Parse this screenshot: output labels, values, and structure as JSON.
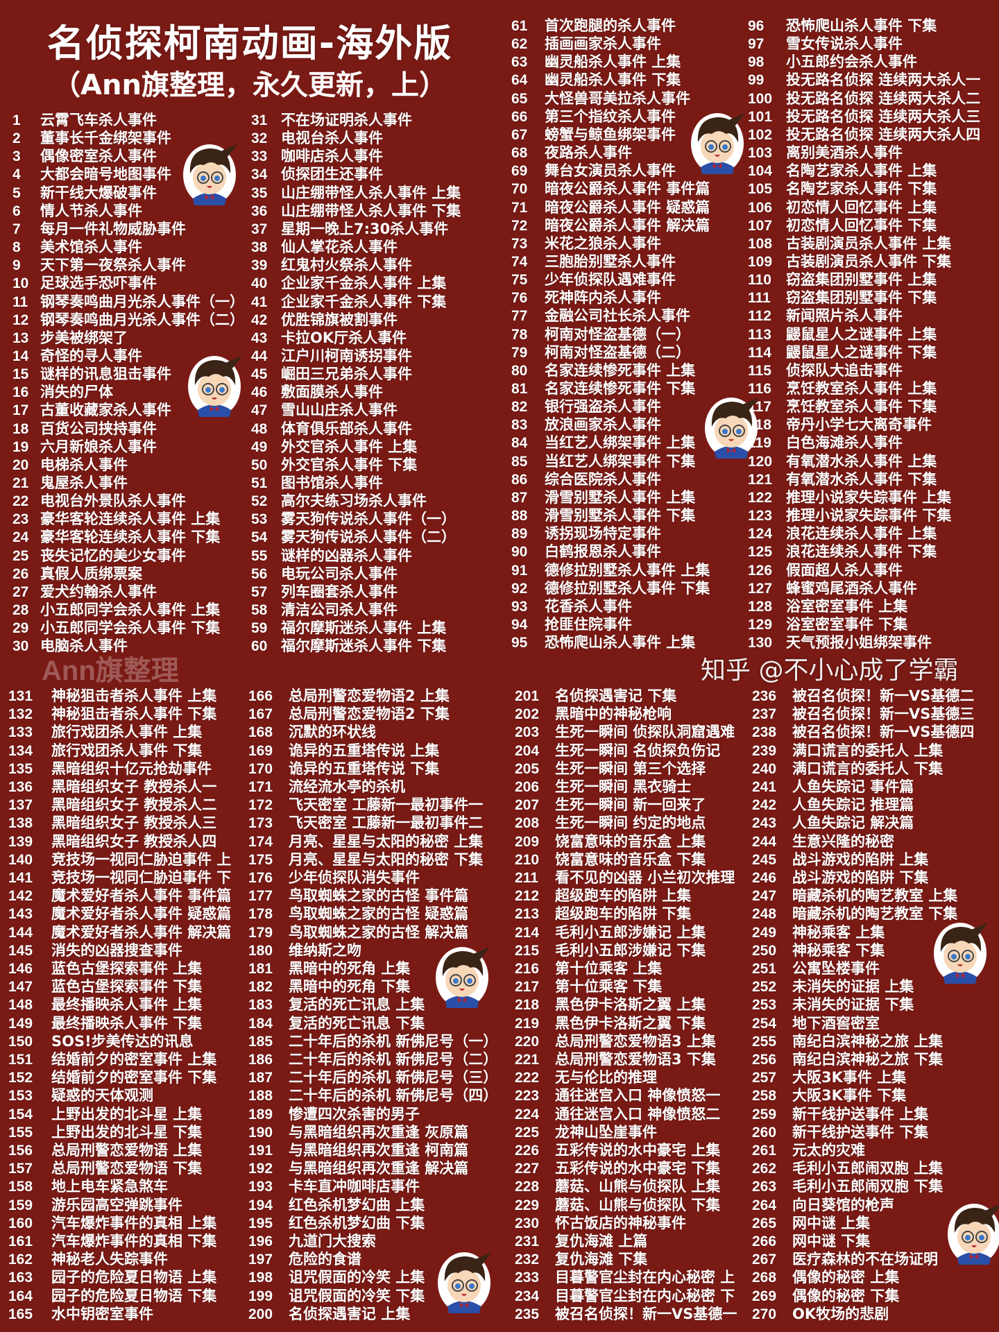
{
  "header": {
    "title": "名侦探柯南动画-海外版",
    "subtitle": "（Ann旗整理，永久更新，上）"
  },
  "watermark": "Ann旗整理",
  "source_watermark": "知乎 @不小心成了学霸",
  "colors": {
    "background": "#7a1a15",
    "text": "#ffffff"
  },
  "episodes": [
    {
      "n": "1",
      "t": "云霄飞车杀人事件"
    },
    {
      "n": "2",
      "t": "董事长千金绑架事件"
    },
    {
      "n": "3",
      "t": "偶像密室杀人事件"
    },
    {
      "n": "4",
      "t": "大都会暗号地图事件"
    },
    {
      "n": "5",
      "t": "新干线大爆破事件"
    },
    {
      "n": "6",
      "t": "情人节杀人事件"
    },
    {
      "n": "7",
      "t": "每月一件礼物威胁事件"
    },
    {
      "n": "8",
      "t": "美术馆杀人事件"
    },
    {
      "n": "9",
      "t": "天下第一夜祭杀人事件"
    },
    {
      "n": "10",
      "t": "足球选手恐吓事件"
    },
    {
      "n": "11",
      "t": "钢琴奏鸣曲月光杀人事件（一）"
    },
    {
      "n": "12",
      "t": "钢琴奏鸣曲月光杀人事件（二）"
    },
    {
      "n": "13",
      "t": "步美被绑架了"
    },
    {
      "n": "14",
      "t": "奇怪的寻人事件"
    },
    {
      "n": "15",
      "t": "谜样的讯息狙击事件"
    },
    {
      "n": "16",
      "t": "消失的尸体"
    },
    {
      "n": "17",
      "t": "古董收藏家杀人事件"
    },
    {
      "n": "18",
      "t": "百货公司挟持事件"
    },
    {
      "n": "19",
      "t": "六月新娘杀人事件"
    },
    {
      "n": "20",
      "t": "电梯杀人事件"
    },
    {
      "n": "21",
      "t": "鬼屋杀人事件"
    },
    {
      "n": "22",
      "t": "电视台外景队杀人事件"
    },
    {
      "n": "23",
      "t": "豪华客轮连续杀人事件 上集"
    },
    {
      "n": "24",
      "t": "豪华客轮连续杀人事件 下集"
    },
    {
      "n": "25",
      "t": "丧失记忆的美少女事件"
    },
    {
      "n": "26",
      "t": "真假人质绑票案"
    },
    {
      "n": "27",
      "t": "爱犬约翰杀人事件"
    },
    {
      "n": "28",
      "t": "小五郎同学会杀人事件 上集"
    },
    {
      "n": "29",
      "t": "小五郎同学会杀人事件 下集"
    },
    {
      "n": "30",
      "t": "电脑杀人事件"
    },
    {
      "n": "31",
      "t": "不在场证明杀人事件"
    },
    {
      "n": "32",
      "t": "电视台杀人事件"
    },
    {
      "n": "33",
      "t": "咖啡店杀人事件"
    },
    {
      "n": "34",
      "t": "侦探团生还事件"
    },
    {
      "n": "35",
      "t": "山庄绷带怪人杀人事件 上集"
    },
    {
      "n": "36",
      "t": "山庄绷带怪人杀人事件 下集"
    },
    {
      "n": "37",
      "t": "星期一晚上7:30杀人事件"
    },
    {
      "n": "38",
      "t": "仙人掌花杀人事件"
    },
    {
      "n": "39",
      "t": "红鬼村火祭杀人事件"
    },
    {
      "n": "40",
      "t": "企业家千金杀人事件 上集"
    },
    {
      "n": "41",
      "t": "企业家千金杀人事件 下集"
    },
    {
      "n": "42",
      "t": "优胜锦旗被割事件"
    },
    {
      "n": "43",
      "t": "卡拉OK厅杀人事件"
    },
    {
      "n": "44",
      "t": "江户川柯南诱拐事件"
    },
    {
      "n": "45",
      "t": "崛田三兄弟杀人事件"
    },
    {
      "n": "46",
      "t": "敷面膜杀人事件"
    },
    {
      "n": "47",
      "t": "雪山山庄杀人事件"
    },
    {
      "n": "48",
      "t": "体育俱乐部杀人事件"
    },
    {
      "n": "49",
      "t": "外交官杀人事件 上集"
    },
    {
      "n": "50",
      "t": "外交官杀人事件 下集"
    },
    {
      "n": "51",
      "t": "图书馆杀人事件"
    },
    {
      "n": "52",
      "t": "高尔夫练习场杀人事件"
    },
    {
      "n": "53",
      "t": "雾天狗传说杀人事件（一）"
    },
    {
      "n": "54",
      "t": "雾天狗传说杀人事件（二）"
    },
    {
      "n": "55",
      "t": "谜样的凶器杀人事件"
    },
    {
      "n": "56",
      "t": "电玩公司杀人事件"
    },
    {
      "n": "57",
      "t": "列车圈套杀人事件"
    },
    {
      "n": "58",
      "t": "清洁公司杀人事件"
    },
    {
      "n": "59",
      "t": "福尔摩斯迷杀人事件 上集"
    },
    {
      "n": "60",
      "t": "福尔摩斯迷杀人事件 下集"
    },
    {
      "n": "61",
      "t": "首次跑腿的杀人事件"
    },
    {
      "n": "62",
      "t": "插画画家杀人事件"
    },
    {
      "n": "63",
      "t": "幽灵船杀人事件 上集"
    },
    {
      "n": "64",
      "t": "幽灵船杀人事件 下集"
    },
    {
      "n": "65",
      "t": "大怪兽哥美拉杀人事件"
    },
    {
      "n": "66",
      "t": "第三个指纹杀人事件"
    },
    {
      "n": "67",
      "t": "螃蟹与鲸鱼绑架事件"
    },
    {
      "n": "68",
      "t": "夜路杀人事件"
    },
    {
      "n": "69",
      "t": "舞台女演员杀人事件"
    },
    {
      "n": "70",
      "t": "暗夜公爵杀人事件 事件篇"
    },
    {
      "n": "71",
      "t": "暗夜公爵杀人事件 疑惑篇"
    },
    {
      "n": "72",
      "t": "暗夜公爵杀人事件 解决篇"
    },
    {
      "n": "73",
      "t": "米花之狼杀人事件"
    },
    {
      "n": "74",
      "t": "三胞胎别墅杀人事件"
    },
    {
      "n": "75",
      "t": "少年侦探队遇难事件"
    },
    {
      "n": "76",
      "t": "死神阵内杀人事件"
    },
    {
      "n": "77",
      "t": "金融公司社长杀人事件"
    },
    {
      "n": "78",
      "t": "柯南对怪盗基德（一）"
    },
    {
      "n": "79",
      "t": "柯南对怪盗基德（二）"
    },
    {
      "n": "80",
      "t": "名家连续惨死事件 上集"
    },
    {
      "n": "81",
      "t": "名家连续惨死事件 下集"
    },
    {
      "n": "82",
      "t": "银行强盗杀人事件"
    },
    {
      "n": "83",
      "t": "放浪画家杀人事件"
    },
    {
      "n": "84",
      "t": "当红艺人绑架事件 上集"
    },
    {
      "n": "85",
      "t": "当红艺人绑架事件 下集"
    },
    {
      "n": "86",
      "t": "综合医院杀人事件"
    },
    {
      "n": "87",
      "t": "滑雪别墅杀人事件 上集"
    },
    {
      "n": "88",
      "t": "滑雪别墅杀人事件 下集"
    },
    {
      "n": "89",
      "t": "诱拐现场特定事件"
    },
    {
      "n": "90",
      "t": "白鹤报恩杀人事件"
    },
    {
      "n": "91",
      "t": "德修拉别墅杀人事件 上集"
    },
    {
      "n": "92",
      "t": "德修拉别墅杀人事件 下集"
    },
    {
      "n": "93",
      "t": "花香杀人事件"
    },
    {
      "n": "94",
      "t": "抢匪住院事件"
    },
    {
      "n": "95",
      "t": "恐怖爬山杀人事件 上集"
    },
    {
      "n": "96",
      "t": "恐怖爬山杀人事件 下集"
    },
    {
      "n": "97",
      "t": "雪女传说杀人事件"
    },
    {
      "n": "98",
      "t": "小五郎约会杀人事件"
    },
    {
      "n": "99",
      "t": "投无路名侦探 连续两大杀人一"
    },
    {
      "n": "100",
      "t": "投无路名侦探 连续两大杀人二"
    },
    {
      "n": "101",
      "t": "投无路名侦探 连续两大杀人三"
    },
    {
      "n": "102",
      "t": "投无路名侦探 连续两大杀人四"
    },
    {
      "n": "103",
      "t": "离别美酒杀人事件"
    },
    {
      "n": "104",
      "t": "名陶艺家杀人事件 上集"
    },
    {
      "n": "105",
      "t": "名陶艺家杀人事件 下集"
    },
    {
      "n": "106",
      "t": "初恋情人回忆事件 上集"
    },
    {
      "n": "107",
      "t": "初恋情人回忆事件 下集"
    },
    {
      "n": "108",
      "t": "古装剧演员杀人事件 上集"
    },
    {
      "n": "109",
      "t": "古装剧演员杀人事件 下集"
    },
    {
      "n": "110",
      "t": "窃盗集团别墅事件 上集"
    },
    {
      "n": "111",
      "t": "窃盗集团别墅事件 下集"
    },
    {
      "n": "112",
      "t": "新闻照片杀人事件"
    },
    {
      "n": "113",
      "t": "鼹鼠星人之谜事件 上集"
    },
    {
      "n": "114",
      "t": "鼹鼠星人之谜事件 下集"
    },
    {
      "n": "115",
      "t": "侦探队大追击事件"
    },
    {
      "n": "116",
      "t": "烹饪教室杀人事件 上集"
    },
    {
      "n": "117",
      "t": "烹饪教室杀人事件 下集"
    },
    {
      "n": "118",
      "t": "帝丹小学七大离奇事件"
    },
    {
      "n": "119",
      "t": "白色海滩杀人事件"
    },
    {
      "n": "120",
      "t": "有氧潜水杀人事件 上集"
    },
    {
      "n": "121",
      "t": "有氧潜水杀人事件 下集"
    },
    {
      "n": "122",
      "t": "推理小说家失踪事件 上集"
    },
    {
      "n": "123",
      "t": "推理小说家失踪事件 下集"
    },
    {
      "n": "124",
      "t": "浪花连续杀人事件 上集"
    },
    {
      "n": "125",
      "t": "浪花连续杀人事件 下集"
    },
    {
      "n": "126",
      "t": "假面超人杀人事件"
    },
    {
      "n": "127",
      "t": "蜂蜜鸡尾酒杀人事件"
    },
    {
      "n": "128",
      "t": "浴室密室事件 上集"
    },
    {
      "n": "129",
      "t": "浴室密室事件 下集"
    },
    {
      "n": "130",
      "t": "天气预报小姐绑架事件"
    },
    {
      "n": "131",
      "t": "神秘狙击者杀人事件 上集"
    },
    {
      "n": "132",
      "t": "神秘狙击者杀人事件 下集"
    },
    {
      "n": "133",
      "t": "旅行戏团杀人事件 上集"
    },
    {
      "n": "134",
      "t": "旅行戏团杀人事件 下集"
    },
    {
      "n": "135",
      "t": "黑暗组织十亿元抢劫事件"
    },
    {
      "n": "136",
      "t": "黑暗组织女子 教授杀人一"
    },
    {
      "n": "137",
      "t": "黑暗组织女子 教授杀人二"
    },
    {
      "n": "138",
      "t": "黑暗组织女子 教授杀人三"
    },
    {
      "n": "139",
      "t": "黑暗组织女子 教授杀人四"
    },
    {
      "n": "140",
      "t": "竞技场一视同仁胁迫事件 上"
    },
    {
      "n": "141",
      "t": "竞技场一视同仁胁迫事件 下"
    },
    {
      "n": "142",
      "t": "魔术爱好者杀人事件 事件篇"
    },
    {
      "n": "143",
      "t": "魔术爱好者杀人事件 疑惑篇"
    },
    {
      "n": "144",
      "t": "魔术爱好者杀人事件 解决篇"
    },
    {
      "n": "145",
      "t": "消失的凶器搜查事件"
    },
    {
      "n": "146",
      "t": "蓝色古堡探索事件 上集"
    },
    {
      "n": "147",
      "t": "蓝色古堡探索事件 下集"
    },
    {
      "n": "148",
      "t": "最终播映杀人事件 上集"
    },
    {
      "n": "149",
      "t": "最终播映杀人事件 下集"
    },
    {
      "n": "150",
      "t": "SOS!步美传达的讯息"
    },
    {
      "n": "151",
      "t": "结婚前夕的密室事件 上集"
    },
    {
      "n": "152",
      "t": "结婚前夕的密室事件 下集"
    },
    {
      "n": "153",
      "t": "疑惑的天体观测"
    },
    {
      "n": "154",
      "t": "上野出发的北斗星 上集"
    },
    {
      "n": "155",
      "t": "上野出发的北斗星 下集"
    },
    {
      "n": "156",
      "t": "总局刑警恋爱物语 上集"
    },
    {
      "n": "157",
      "t": "总局刑警恋爱物语 下集"
    },
    {
      "n": "158",
      "t": "地上电车紧急煞车"
    },
    {
      "n": "159",
      "t": "游乐园高空弹跳事件"
    },
    {
      "n": "160",
      "t": "汽车爆炸事件的真相 上集"
    },
    {
      "n": "161",
      "t": "汽车爆炸事件的真相 下集"
    },
    {
      "n": "162",
      "t": "神秘老人失踪事件"
    },
    {
      "n": "163",
      "t": "园子的危险夏日物语 上集"
    },
    {
      "n": "164",
      "t": "园子的危险夏日物语 下集"
    },
    {
      "n": "165",
      "t": "水中钥密室事件"
    },
    {
      "n": "166",
      "t": "总局刑警恋爱物语2 上集"
    },
    {
      "n": "167",
      "t": "总局刑警恋爱物语2 下集"
    },
    {
      "n": "168",
      "t": "沉默的环状线"
    },
    {
      "n": "169",
      "t": "诡异的五重塔传说 上集"
    },
    {
      "n": "170",
      "t": "诡异的五重塔传说 下集"
    },
    {
      "n": "171",
      "t": "流经流水亭的杀机"
    },
    {
      "n": "172",
      "t": "飞天密室 工藤新一最初事件一"
    },
    {
      "n": "173",
      "t": "飞天密室 工藤新一最初事件二"
    },
    {
      "n": "174",
      "t": "月亮、星星与太阳的秘密 上集"
    },
    {
      "n": "175",
      "t": "月亮、星星与太阳的秘密 下集"
    },
    {
      "n": "176",
      "t": "少年侦探队消失事件"
    },
    {
      "n": "177",
      "t": "鸟取蜘蛛之家的古怪 事件篇"
    },
    {
      "n": "178",
      "t": "鸟取蜘蛛之家的古怪 疑惑篇"
    },
    {
      "n": "179",
      "t": "鸟取蜘蛛之家的古怪 解决篇"
    },
    {
      "n": "180",
      "t": "维纳斯之吻"
    },
    {
      "n": "181",
      "t": "黑暗中的死角 上集"
    },
    {
      "n": "182",
      "t": "黑暗中的死角 下集"
    },
    {
      "n": "183",
      "t": "复活的死亡讯息 上集"
    },
    {
      "n": "184",
      "t": "复活的死亡讯息 下集"
    },
    {
      "n": "185",
      "t": "二十年后的杀机 新佛尼号（一）"
    },
    {
      "n": "186",
      "t": "二十年后的杀机 新佛尼号（二）"
    },
    {
      "n": "187",
      "t": "二十年后的杀机 新佛尼号（三）"
    },
    {
      "n": "188",
      "t": "二十年后的杀机 新佛尼号（四）"
    },
    {
      "n": "189",
      "t": "惨遭四次杀害的男子"
    },
    {
      "n": "190",
      "t": "与黑暗组织再次重逢 灰原篇"
    },
    {
      "n": "191",
      "t": "与黑暗组织再次重逢 柯南篇"
    },
    {
      "n": "192",
      "t": "与黑暗组织再次重逢 解决篇"
    },
    {
      "n": "193",
      "t": "卡车直冲咖啡店事件"
    },
    {
      "n": "194",
      "t": "红色杀机梦幻曲 上集"
    },
    {
      "n": "195",
      "t": "红色杀机梦幻曲 下集"
    },
    {
      "n": "196",
      "t": "九道门大搜索"
    },
    {
      "n": "197",
      "t": "危险的食谱"
    },
    {
      "n": "198",
      "t": "诅咒假面的冷笑 上集"
    },
    {
      "n": "199",
      "t": "诅咒假面的冷笑 下集"
    },
    {
      "n": "200",
      "t": "名侦探遇害记 上集"
    },
    {
      "n": "201",
      "t": "名侦探遇害记 下集"
    },
    {
      "n": "202",
      "t": "黑暗中的神秘枪响"
    },
    {
      "n": "203",
      "t": "生死一瞬间 侦探队洞窟遇难"
    },
    {
      "n": "204",
      "t": "生死一瞬间 名侦探负伤记"
    },
    {
      "n": "205",
      "t": "生死一瞬间 第三个选择"
    },
    {
      "n": "206",
      "t": "生死一瞬间 黑衣骑士"
    },
    {
      "n": "207",
      "t": "生死一瞬间 新一回来了"
    },
    {
      "n": "208",
      "t": "生死一瞬间 约定的地点"
    },
    {
      "n": "209",
      "t": "饶富意味的音乐盒 上集"
    },
    {
      "n": "210",
      "t": "饶富意味的音乐盒 下集"
    },
    {
      "n": "211",
      "t": "看不见的凶器 小兰初次推理"
    },
    {
      "n": "212",
      "t": "超级跑车的陷阱 上集"
    },
    {
      "n": "213",
      "t": "超级跑车的陷阱 下集"
    },
    {
      "n": "214",
      "t": "毛利小五郎涉嫌记 上集"
    },
    {
      "n": "215",
      "t": "毛利小五郎涉嫌记 下集"
    },
    {
      "n": "216",
      "t": "第十位乘客 上集"
    },
    {
      "n": "217",
      "t": "第十位乘客 下集"
    },
    {
      "n": "218",
      "t": "黑色伊卡洛斯之翼 上集"
    },
    {
      "n": "219",
      "t": "黑色伊卡洛斯之翼 下集"
    },
    {
      "n": "220",
      "t": "总局刑警恋爱物语3 上集"
    },
    {
      "n": "221",
      "t": "总局刑警恋爱物语3 下集"
    },
    {
      "n": "222",
      "t": "无与伦比的推理"
    },
    {
      "n": "223",
      "t": "通往迷宫入口 神像愤怒一"
    },
    {
      "n": "224",
      "t": "通往迷宫入口 神像愤怒二"
    },
    {
      "n": "225",
      "t": "龙神山坠崖事件"
    },
    {
      "n": "226",
      "t": "五彩传说的水中豪宅 上集"
    },
    {
      "n": "227",
      "t": "五彩传说的水中豪宅 下集"
    },
    {
      "n": "228",
      "t": "蘑菇、山熊与侦探队 上集"
    },
    {
      "n": "229",
      "t": "蘑菇、山熊与侦探队 下集"
    },
    {
      "n": "230",
      "t": "怀古饭店的神秘事件"
    },
    {
      "n": "231",
      "t": "复仇海滩 上篇"
    },
    {
      "n": "232",
      "t": "复仇海滩 下集"
    },
    {
      "n": "233",
      "t": "目暮警官尘封在内心秘密 上"
    },
    {
      "n": "234",
      "t": "目暮警官尘封在内心秘密 下"
    },
    {
      "n": "235",
      "t": "被召名侦探！新一VS基德一"
    },
    {
      "n": "236",
      "t": "被召名侦探！新一VS基德二"
    },
    {
      "n": "237",
      "t": "被召名侦探！新一VS基德三"
    },
    {
      "n": "238",
      "t": "被召名侦探！新一VS基德四"
    },
    {
      "n": "239",
      "t": "满口谎言的委托人 上集"
    },
    {
      "n": "240",
      "t": "满口谎言的委托人 下集"
    },
    {
      "n": "241",
      "t": "人鱼失踪记 事件篇"
    },
    {
      "n": "242",
      "t": "人鱼失踪记 推理篇"
    },
    {
      "n": "243",
      "t": "人鱼失踪记 解决篇"
    },
    {
      "n": "244",
      "t": "生意兴隆的秘密"
    },
    {
      "n": "245",
      "t": "战斗游戏的陷阱 上集"
    },
    {
      "n": "246",
      "t": "战斗游戏的陷阱 下集"
    },
    {
      "n": "247",
      "t": "暗藏杀机的陶艺教室 上集"
    },
    {
      "n": "248",
      "t": "暗藏杀机的陶艺教室 下集"
    },
    {
      "n": "249",
      "t": "神秘乘客 上集"
    },
    {
      "n": "250",
      "t": "神秘乘客 下集"
    },
    {
      "n": "251",
      "t": "公寓坠楼事件"
    },
    {
      "n": "252",
      "t": "未消失的证据 上集"
    },
    {
      "n": "253",
      "t": "未消失的证据 下集"
    },
    {
      "n": "254",
      "t": "地下酒窖密室"
    },
    {
      "n": "255",
      "t": "南纪白滨神秘之旅 上集"
    },
    {
      "n": "256",
      "t": "南纪白滨神秘之旅 下集"
    },
    {
      "n": "257",
      "t": "大阪3K事件 上集"
    },
    {
      "n": "258",
      "t": "大阪3K事件 下集"
    },
    {
      "n": "259",
      "t": "新干线护送事件 上集"
    },
    {
      "n": "260",
      "t": "新干线护送事件 下集"
    },
    {
      "n": "261",
      "t": "元太的灾难"
    },
    {
      "n": "262",
      "t": "毛利小五郎闹双胞 上集"
    },
    {
      "n": "263",
      "t": "毛利小五郎闹双胞 下集"
    },
    {
      "n": "264",
      "t": "向日葵馆的枪声"
    },
    {
      "n": "265",
      "t": "网中谜 上集"
    },
    {
      "n": "266",
      "t": "网中谜 下集"
    },
    {
      "n": "267",
      "t": "医疗森林的不在场证明"
    },
    {
      "n": "268",
      "t": "偶像的秘密 上集"
    },
    {
      "n": "269",
      "t": "偶像的秘密 下集"
    },
    {
      "n": "270",
      "t": "OK牧场的悲剧"
    }
  ]
}
